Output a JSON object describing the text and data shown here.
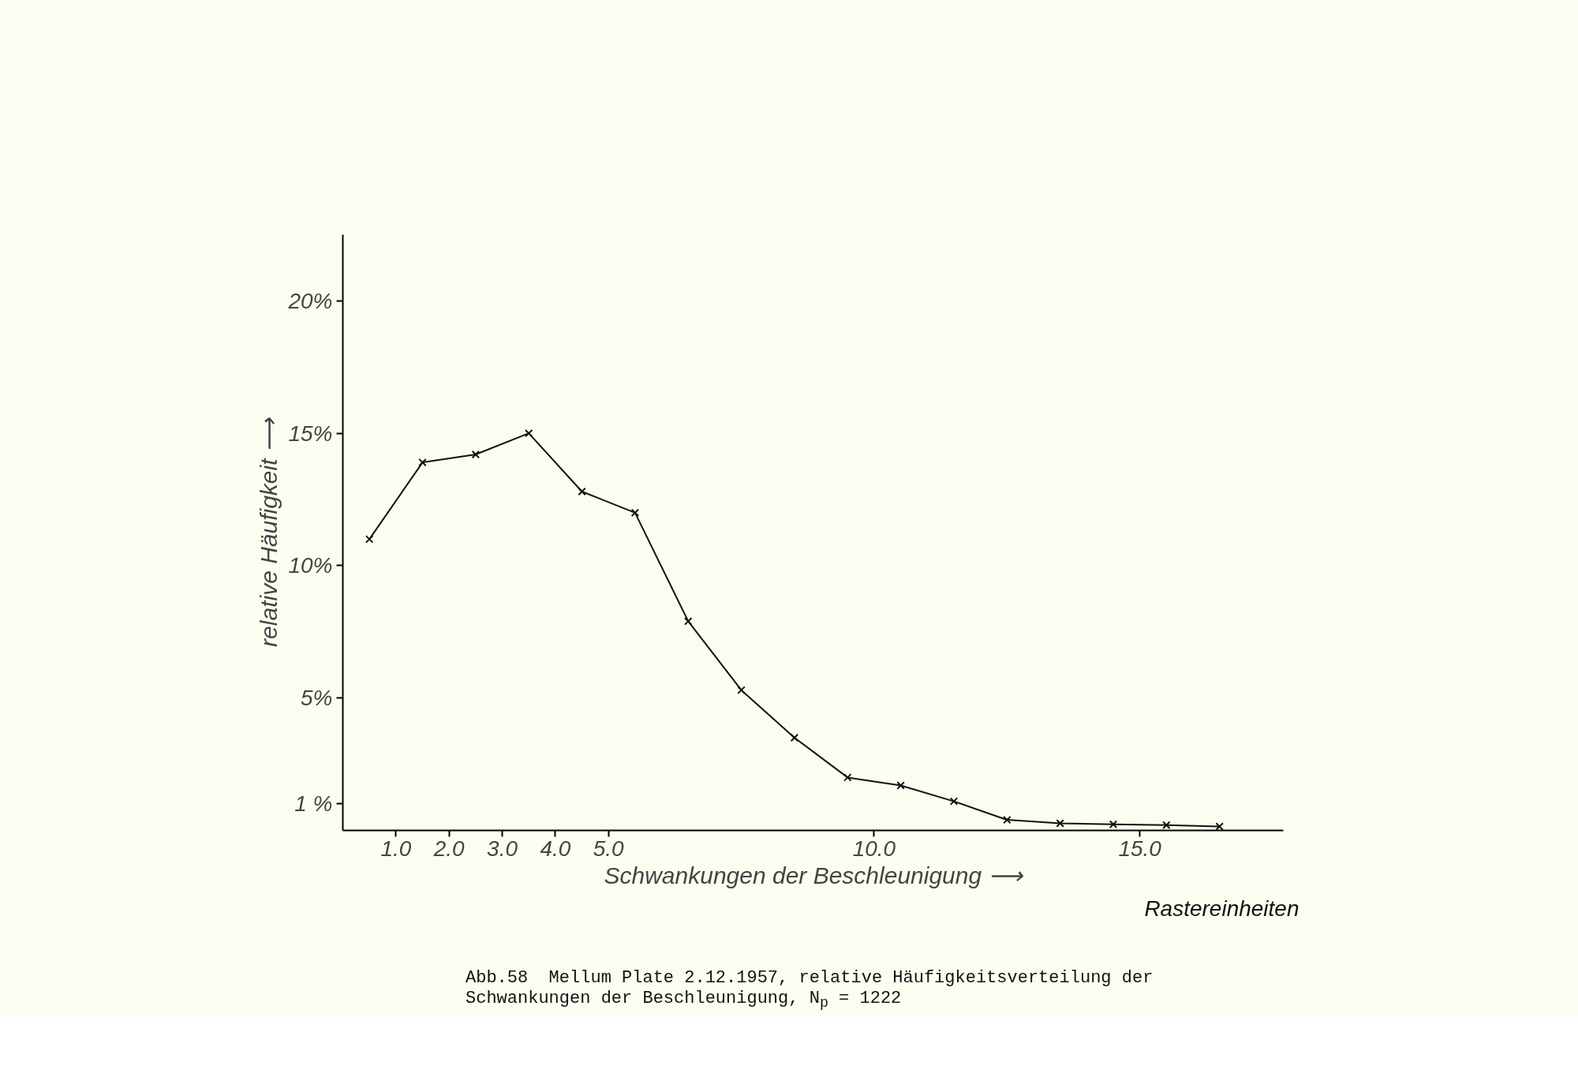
{
  "chart_data": {
    "type": "line",
    "xlabel": "Schwankungen der Beschleunigung ⟶",
    "ylabel": "relative Häufigkeit ⟶",
    "annotations": [
      "Rastereinheiten",
      "Abb.58  Mellum Plate 2.12.1957, relative Häufigkeitsverteilung der",
      "Schwankungen der Beschleunigung, N$_{p}$ = 1222"
    ],
    "x": [
      0.5,
      1.5,
      2.5,
      3.5,
      4.5,
      5.5,
      6.5,
      7.5,
      8.5,
      9.5,
      10.5,
      11.5,
      12.5,
      13.5,
      14.5,
      15.5,
      16.5
    ],
    "series": [
      {
        "color": "#111111",
        "values": [
          11.0,
          13.9,
          14.2,
          15.0,
          12.8,
          12.0,
          7.9,
          5.3,
          3.5,
          2.0,
          1.7,
          1.1,
          0.4,
          0.27,
          0.23,
          0.2,
          0.15
        ]
      }
    ],
    "xlim": [
      0,
      17.7
    ],
    "xticks": [
      {
        "value": 1,
        "label": "1.0"
      },
      {
        "value": 2,
        "label": "2.0"
      },
      {
        "value": 3,
        "label": "3.0"
      },
      {
        "value": 4,
        "label": "4.0"
      },
      {
        "value": 5,
        "label": "5.0"
      },
      {
        "value": 10,
        "label": "10.0"
      },
      {
        "value": 15,
        "label": "15.0"
      }
    ],
    "ylim": [
      0,
      22.5
    ],
    "yticks": [
      {
        "value": 1,
        "label": "1 %"
      },
      {
        "value": 5,
        "label": "5%"
      },
      {
        "value": 10,
        "label": "10%"
      },
      {
        "value": 15,
        "label": "15%"
      },
      {
        "value": 20,
        "label": "20%"
      }
    ],
    "grid": false,
    "marker": "cross",
    "line_style": "solid"
  }
}
